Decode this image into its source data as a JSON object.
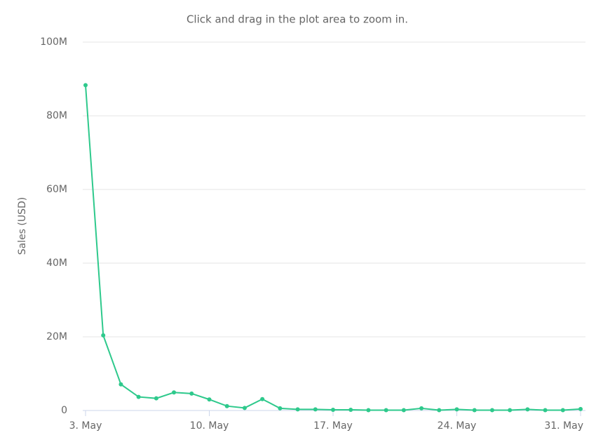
{
  "chart_data": {
    "type": "line",
    "subtitle": "Click and drag in the plot area to zoom in.",
    "y_label": "Sales (USD)",
    "categories": [
      "3. May",
      null,
      null,
      null,
      null,
      null,
      null,
      "10. May",
      null,
      null,
      null,
      null,
      null,
      null,
      "17. May",
      null,
      null,
      null,
      null,
      null,
      null,
      "24. May",
      null,
      null,
      null,
      null,
      null,
      null,
      "31. May"
    ],
    "series": [
      {
        "name": "Sales",
        "color": "#2ec98c",
        "values": [
          88300000,
          20400000,
          7100000,
          3700000,
          3300000,
          4900000,
          4600000,
          3000000,
          1200000,
          700000,
          3100000,
          600000,
          300000,
          300000,
          200000,
          200000,
          100000,
          100000,
          100000,
          600000,
          100000,
          300000,
          100000,
          100000,
          100000,
          300000,
          100000,
          100000,
          400000
        ]
      }
    ],
    "ylim": [
      0,
      100000000
    ],
    "yticks": [
      0,
      {
        "value": 20000000,
        "label": "20M"
      },
      {
        "value": 40000000,
        "label": "40M"
      },
      {
        "value": 60000000,
        "label": "60M"
      },
      {
        "value": 80000000,
        "label": "80M"
      },
      {
        "value": 100000000,
        "label": "100M"
      }
    ],
    "grid": true
  }
}
